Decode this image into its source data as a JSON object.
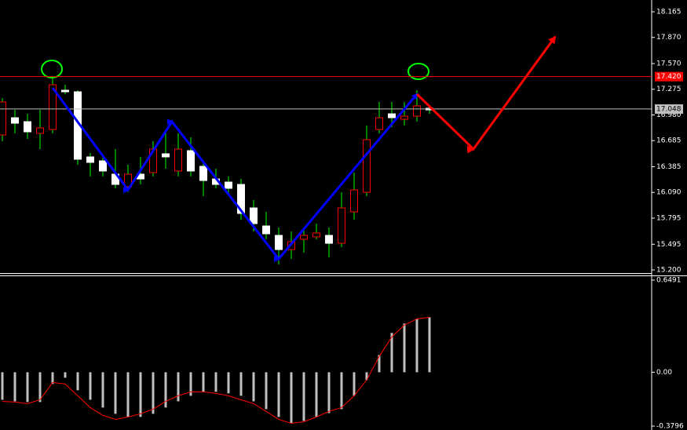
{
  "chart_data": [
    {
      "type": "candlestick",
      "open": [
        17.129,
        16.885,
        16.786,
        16.831,
        17.327,
        17.246,
        16.471,
        16.435,
        16.336,
        16.182,
        16.3,
        16.245,
        16.588,
        16.498,
        16.588,
        16.336,
        16.227,
        16.182,
        16.137,
        15.849,
        15.732,
        15.615,
        15.434,
        15.525,
        15.597,
        15.624,
        15.506,
        15.912,
        16.119,
        16.696,
        16.948,
        16.948,
        16.966,
        17.084,
        17.038
      ],
      "high": [
        17.174,
        17.038,
        16.993,
        17.038,
        17.399,
        17.327,
        17.264,
        16.543,
        16.498,
        16.588,
        16.408,
        16.498,
        16.678,
        16.768,
        16.768,
        16.723,
        16.453,
        16.363,
        16.273,
        16.245,
        16.002,
        15.867,
        15.687,
        15.642,
        15.687,
        15.732,
        15.687,
        16.092,
        16.318,
        16.858,
        17.129,
        17.129,
        17.129,
        17.264,
        17.084
      ],
      "low": [
        16.678,
        16.768,
        16.705,
        16.588,
        16.768,
        17.219,
        16.408,
        16.273,
        16.273,
        16.137,
        16.092,
        16.182,
        16.273,
        16.363,
        16.273,
        16.273,
        16.047,
        16.137,
        16.047,
        15.777,
        15.642,
        15.552,
        15.263,
        15.326,
        15.398,
        15.552,
        15.344,
        15.461,
        15.777,
        16.047,
        16.768,
        16.84,
        16.858,
        16.903,
        16.993
      ],
      "close": [
        16.75,
        16.948,
        16.903,
        16.768,
        16.813,
        17.264,
        17.246,
        16.498,
        16.453,
        16.3,
        16.155,
        16.3,
        16.318,
        16.534,
        16.336,
        16.57,
        16.39,
        16.245,
        16.209,
        16.182,
        15.912,
        15.705,
        15.597,
        15.434,
        15.552,
        15.579,
        15.597,
        15.506,
        15.867,
        16.092,
        16.813,
        16.993,
        16.93,
        16.966,
        17.057
      ],
      "up_color": "#ffffff",
      "down_color": "#ff0000",
      "wick_color": "#00ff00",
      "ylim": [
        15.164,
        18.3
      ],
      "yticks": [
        18.165,
        {
          "value": 17.87,
          "label": "17.870"
        },
        {
          "value": 17.57,
          "label": "17.570"
        },
        17.275,
        {
          "value": 16.98,
          "label": "16.980"
        },
        16.685,
        16.385,
        {
          "value": 16.09,
          "label": "16.090"
        },
        15.795,
        15.495,
        {
          "value": 15.2,
          "label": "15.200"
        }
      ],
      "levels": [
        {
          "value": 17.42,
          "label": "17.420",
          "color": "#ff0000",
          "text_color": "#ffffff"
        },
        {
          "value": 17.048,
          "label": "17.048",
          "color": "#c0c0c0",
          "text_color": "#000000"
        }
      ],
      "zigzag": [
        {
          "color": "#0000ff",
          "x": [
            4,
            10,
            13.5,
            22,
            33
          ],
          "y": [
            17.291,
            16.119,
            16.903,
            15.326,
            17.219
          ]
        },
        {
          "color": "#ff0000",
          "x": [
            33,
            37.5,
            44
          ],
          "y": [
            17.219,
            16.588,
            17.877
          ]
        }
      ]
    },
    {
      "type": "histogram",
      "values": [
        -0.194,
        -0.205,
        -0.21,
        -0.21,
        -0.083,
        -0.039,
        -0.127,
        -0.194,
        -0.249,
        -0.293,
        -0.315,
        -0.315,
        -0.293,
        -0.249,
        -0.205,
        -0.166,
        -0.138,
        -0.138,
        -0.149,
        -0.166,
        -0.205,
        -0.26,
        -0.315,
        -0.36,
        -0.343,
        -0.315,
        -0.288,
        -0.26,
        -0.166,
        -0.055,
        0.122,
        0.277,
        0.343,
        0.376,
        0.387
      ],
      "color": "#c0c0c0",
      "signal": {
        "color": "#ff0000",
        "values": [
          -0.205,
          -0.21,
          -0.221,
          -0.194,
          -0.072,
          -0.083,
          -0.166,
          -0.249,
          -0.304,
          -0.332,
          -0.315,
          -0.293,
          -0.26,
          -0.205,
          -0.166,
          -0.138,
          -0.138,
          -0.149,
          -0.166,
          -0.194,
          -0.221,
          -0.276,
          -0.332,
          -0.36,
          -0.349,
          -0.315,
          -0.276,
          -0.249,
          -0.166,
          -0.055,
          0.111,
          0.249,
          0.332,
          0.376,
          0.387
        ]
      },
      "ylim": [
        -0.407,
        0.682
      ],
      "yticks": [
        0.6491,
        {
          "value": 0,
          "label": "0.00"
        },
        -0.3796
      ]
    }
  ]
}
